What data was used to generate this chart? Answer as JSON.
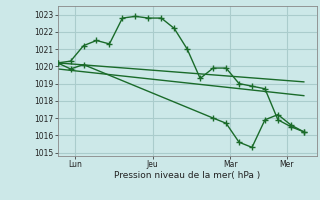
{
  "background_color": "#cce8e8",
  "grid_color": "#aacccc",
  "line_color": "#1a6b2a",
  "xlabel": "Pression niveau de la mer( hPa )",
  "ylim": [
    1014.8,
    1023.5
  ],
  "yticks": [
    1015,
    1016,
    1017,
    1018,
    1019,
    1020,
    1021,
    1022,
    1023
  ],
  "xtick_labels": [
    "Lun",
    "Jeu",
    "Mar",
    "Mer"
  ],
  "xtick_positions": [
    8,
    44,
    80,
    106
  ],
  "xlim": [
    0,
    120
  ],
  "series1_marked": [
    [
      0,
      1020.2
    ],
    [
      6,
      1020.3
    ],
    [
      12,
      1021.2
    ],
    [
      18,
      1021.5
    ],
    [
      24,
      1021.3
    ],
    [
      30,
      1022.8
    ],
    [
      36,
      1022.9
    ],
    [
      42,
      1022.8
    ],
    [
      48,
      1022.8
    ],
    [
      54,
      1022.2
    ],
    [
      60,
      1021.0
    ],
    [
      66,
      1019.3
    ],
    [
      72,
      1019.9
    ],
    [
      78,
      1019.9
    ],
    [
      84,
      1019.0
    ],
    [
      90,
      1018.85
    ],
    [
      96,
      1018.7
    ],
    [
      102,
      1016.9
    ],
    [
      108,
      1016.5
    ],
    [
      114,
      1016.2
    ]
  ],
  "series2_marked": [
    [
      0,
      1020.2
    ],
    [
      6,
      1019.85
    ],
    [
      12,
      1020.1
    ],
    [
      72,
      1017.0
    ],
    [
      78,
      1016.7
    ],
    [
      84,
      1015.6
    ],
    [
      90,
      1015.3
    ],
    [
      96,
      1016.9
    ],
    [
      102,
      1017.2
    ],
    [
      108,
      1016.6
    ],
    [
      114,
      1016.2
    ]
  ],
  "series3_trend": [
    [
      0,
      1020.2
    ],
    [
      114,
      1019.1
    ]
  ],
  "series4_trend": [
    [
      0,
      1019.85
    ],
    [
      114,
      1018.3
    ]
  ]
}
